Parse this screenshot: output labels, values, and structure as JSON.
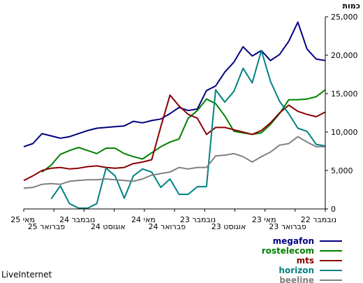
{
  "chart_data": {
    "type": "line",
    "ylabel": "כמות",
    "ylim": [
      0,
      25000
    ],
    "y_ticks": [
      "0",
      "5,000",
      "10,000",
      "15,000",
      "20,000",
      "25,000"
    ],
    "x_ticks": [
      "נובמבר 22",
      "פברואר 23",
      "מאי 23",
      "אוגוסט 23",
      "נובמבר 23",
      "פברואר 24",
      "מאי 24",
      "אוגוסט 24",
      "נובמבר 24",
      "פברואר 25",
      "מאי 25"
    ],
    "grid": false,
    "legend_position": "bottom-right",
    "series": [
      {
        "name": "megafon",
        "color": "#00007f",
        "values": [
          19300,
          19500,
          20800,
          24300,
          21800,
          20100,
          19300,
          20600,
          19900,
          21100,
          19100,
          17800,
          16000,
          15400,
          13000,
          12800,
          13200,
          12400,
          11700,
          11500,
          11200,
          11400,
          10800,
          10700,
          10600,
          10500,
          10200,
          9800,
          9400,
          9200,
          9500,
          9800,
          8500,
          8100
        ]
      },
      {
        "name": "rostelecom",
        "color": "#008000",
        "values": [
          15500,
          14600,
          14300,
          14200,
          14200,
          12400,
          11000,
          9900,
          9700,
          9900,
          10100,
          12100,
          13700,
          14300,
          12800,
          11800,
          9100,
          8700,
          8100,
          7300,
          6500,
          6800,
          7200,
          7900,
          7900,
          7200,
          7600,
          8000,
          7600,
          7100,
          5700,
          4800
        ]
      },
      {
        "name": "mts",
        "color": "#8b0000",
        "values": [
          12600,
          12000,
          12300,
          12700,
          13500,
          12500,
          11200,
          10200,
          9700,
          10000,
          10300,
          10600,
          10600,
          9700,
          11800,
          12300,
          13400,
          14800,
          10700,
          6400,
          6100,
          5900,
          5400,
          5300,
          5400,
          5600,
          5500,
          5300,
          5200,
          5400,
          5300,
          5000,
          4300,
          3700
        ]
      },
      {
        "name": "horizon",
        "color": "#008080",
        "values": [
          8200,
          8400,
          10100,
          10500,
          12400,
          14000,
          16600,
          20600,
          16400,
          18300,
          15300,
          13900,
          15500,
          2900,
          2900,
          1900,
          1900,
          3900,
          2800,
          4800,
          5200,
          4300,
          1400,
          4300,
          5300,
          700,
          100,
          100,
          700,
          3000,
          1300
        ]
      },
      {
        "name": "beeline",
        "color": "#808080",
        "values": [
          8100,
          8100,
          8700,
          9400,
          8500,
          8300,
          7400,
          6800,
          6100,
          6800,
          7200,
          7000,
          6900,
          5400,
          5400,
          5200,
          5400,
          4800,
          4600,
          4400,
          3900,
          3600,
          3700,
          3800,
          3900,
          3800,
          3800,
          3700,
          3600,
          3200,
          3300,
          3200,
          2800,
          2700
        ]
      }
    ]
  },
  "footer": "LiveInternet"
}
